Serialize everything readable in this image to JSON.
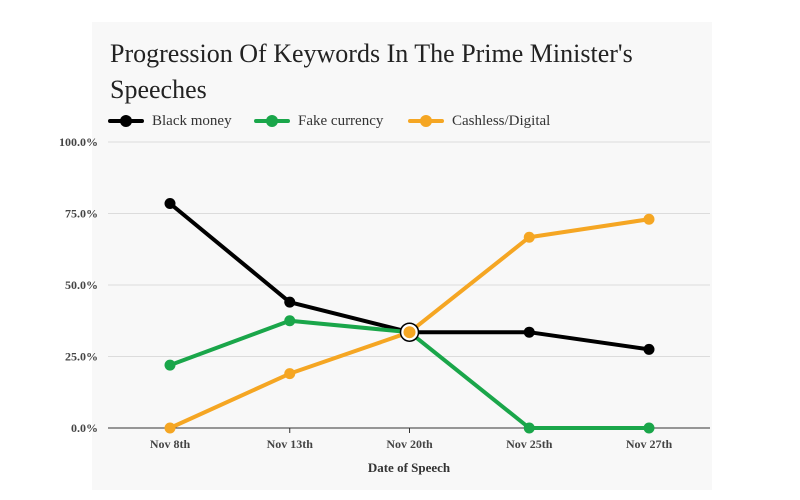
{
  "chart_data": {
    "type": "line",
    "title": "Progression Of Keywords In The Prime Minister's Speeches",
    "xlabel": "Date of Speech",
    "ylabel": "",
    "categories": [
      "Nov 8th",
      "Nov 13th",
      "Nov 20th",
      "Nov 25th",
      "Nov 27th"
    ],
    "ylim": [
      0,
      100
    ],
    "yticks": [
      "0.0%",
      "25.0%",
      "50.0%",
      "75.0%",
      "100.0%"
    ],
    "grid": true,
    "legend_position": "top-left",
    "series": [
      {
        "name": "Black money",
        "color": "#000000",
        "values": [
          78.5,
          44,
          33.5,
          33.5,
          27.5
        ]
      },
      {
        "name": "Fake currency",
        "color": "#1aa64a",
        "values": [
          22,
          37.5,
          33.5,
          0,
          0
        ]
      },
      {
        "name": "Cashless/Digital",
        "color": "#f5a623",
        "values": [
          0,
          19,
          33.5,
          66.7,
          73
        ]
      }
    ],
    "highlight": {
      "category": "Nov 20th",
      "value": 33.5
    }
  }
}
